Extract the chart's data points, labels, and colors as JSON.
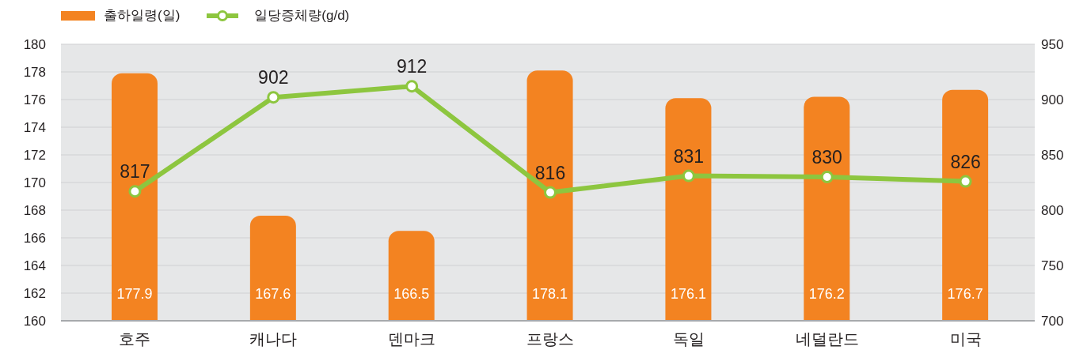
{
  "chart_data": {
    "type": "bar",
    "categories": [
      "호주",
      "캐나다",
      "덴마크",
      "프랑스",
      "독일",
      "네덜란드",
      "미국"
    ],
    "series": [
      {
        "name": "출하일령(일)",
        "color": "#f38321",
        "values": [
          177.9,
          167.6,
          166.5,
          178.1,
          176.1,
          176.2,
          176.7
        ]
      },
      {
        "name": "일당증체량(g/d)",
        "type": "line",
        "axis": "y2",
        "color": "#8dc63f",
        "values": [
          817,
          902,
          912,
          816,
          831,
          830,
          826
        ]
      }
    ],
    "ylim": [
      160,
      180
    ],
    "yticks": [
      160,
      162,
      164,
      166,
      168,
      170,
      172,
      174,
      176,
      178,
      180
    ],
    "y2lim": [
      700,
      950
    ],
    "y2ticks": [
      700,
      750,
      800,
      850,
      900,
      950
    ],
    "grid": "y",
    "legend": "top left",
    "marker": "circle",
    "data_labels": true
  }
}
